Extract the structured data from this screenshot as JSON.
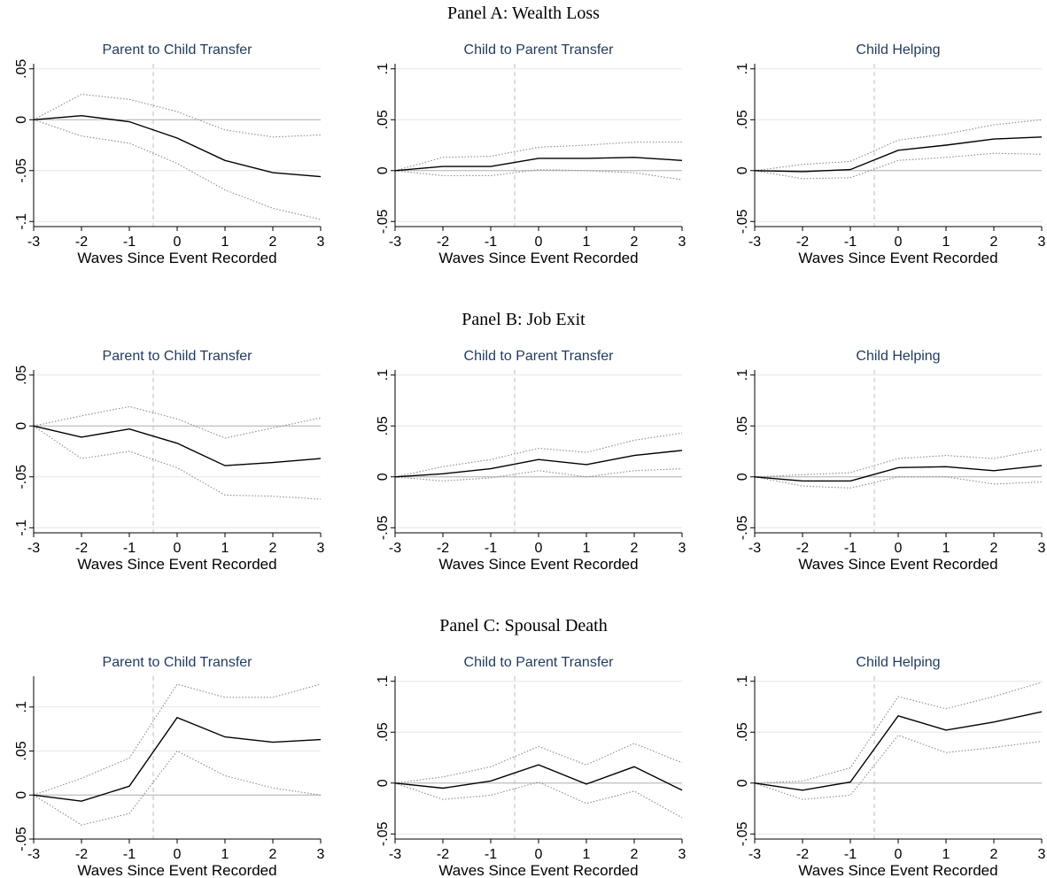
{
  "panels": [
    {
      "title": "Panel A: Wealth Loss"
    },
    {
      "title": "Panel B: Job Exit"
    },
    {
      "title": "Panel C: Spousal Death"
    }
  ],
  "style": {
    "estimate_color": "#000000",
    "ci_color": "#8c8c8c",
    "grid_color": "#e6e6e6",
    "zero_line_color": "#b3b3b3",
    "event_line_color": "#bdbdbd",
    "subtitle_color": "#1f3a5f"
  },
  "chart_data": [
    {
      "panel": "Panel A: Wealth Loss",
      "type": "line",
      "title": "Parent to Child Transfer",
      "xlabel": "Waves Since Event Recorded",
      "ylabel": "",
      "x": [
        -3,
        -2,
        -1,
        0,
        1,
        2,
        3
      ],
      "xticks": [
        "-3",
        "-2",
        "-1",
        "0",
        "1",
        "2",
        "3"
      ],
      "ylim": [
        -0.105,
        0.055
      ],
      "yticks": [
        -0.1,
        -0.05,
        0,
        0.05
      ],
      "ytick_labels": [
        "-.1",
        "-.05",
        "0",
        ".05"
      ],
      "estimate": [
        0,
        0.004,
        -0.002,
        -0.018,
        -0.04,
        -0.052,
        -0.056
      ],
      "ci_upper": [
        0,
        0.025,
        0.02,
        0.008,
        -0.01,
        -0.017,
        -0.015
      ],
      "ci_lower": [
        0,
        -0.016,
        -0.023,
        -0.043,
        -0.069,
        -0.087,
        -0.098
      ],
      "event_line_x": -0.5,
      "reference_line_y": 0
    },
    {
      "panel": "Panel A: Wealth Loss",
      "type": "line",
      "title": "Child to Parent Transfer",
      "xlabel": "Waves Since Event Recorded",
      "ylabel": "",
      "x": [
        -3,
        -2,
        -1,
        0,
        1,
        2,
        3
      ],
      "xticks": [
        "-3",
        "-2",
        "-1",
        "0",
        "1",
        "2",
        "3"
      ],
      "ylim": [
        -0.055,
        0.105
      ],
      "yticks": [
        -0.05,
        0,
        0.05,
        0.1
      ],
      "ytick_labels": [
        "-.05",
        "0",
        ".05",
        ".1"
      ],
      "estimate": [
        0,
        0.004,
        0.004,
        0.012,
        0.012,
        0.013,
        0.01
      ],
      "ci_upper": [
        0,
        0.013,
        0.014,
        0.023,
        0.025,
        0.028,
        0.028
      ],
      "ci_lower": [
        0,
        -0.005,
        -0.005,
        0.001,
        0.0,
        -0.002,
        -0.009
      ],
      "event_line_x": -0.5,
      "reference_line_y": 0
    },
    {
      "panel": "Panel A: Wealth Loss",
      "type": "line",
      "title": "Child Helping",
      "xlabel": "Waves Since Event Recorded",
      "ylabel": "",
      "x": [
        -3,
        -2,
        -1,
        0,
        1,
        2,
        3
      ],
      "xticks": [
        "-3",
        "-2",
        "-1",
        "0",
        "1",
        "2",
        "3"
      ],
      "ylim": [
        -0.055,
        0.105
      ],
      "yticks": [
        -0.05,
        0,
        0.05,
        0.1
      ],
      "ytick_labels": [
        "-.05",
        "0",
        ".05",
        ".1"
      ],
      "estimate": [
        0,
        -0.001,
        0.001,
        0.02,
        0.025,
        0.031,
        0.033
      ],
      "ci_upper": [
        0,
        0.006,
        0.009,
        0.03,
        0.036,
        0.045,
        0.05
      ],
      "ci_lower": [
        0,
        -0.008,
        -0.007,
        0.01,
        0.013,
        0.017,
        0.016
      ],
      "event_line_x": -0.5,
      "reference_line_y": 0
    },
    {
      "panel": "Panel B: Job Exit",
      "type": "line",
      "title": "Parent to Child Transfer",
      "xlabel": "Waves Since Event Recorded",
      "ylabel": "",
      "x": [
        -3,
        -2,
        -1,
        0,
        1,
        2,
        3
      ],
      "xticks": [
        "-3",
        "-2",
        "-1",
        "0",
        "1",
        "2",
        "3"
      ],
      "ylim": [
        -0.105,
        0.055
      ],
      "yticks": [
        -0.1,
        -0.05,
        0,
        0.05
      ],
      "ytick_labels": [
        "-.1",
        "-.05",
        "0",
        ".05"
      ],
      "estimate": [
        0,
        -0.011,
        -0.003,
        -0.017,
        -0.039,
        -0.036,
        -0.032
      ],
      "ci_upper": [
        0,
        0.01,
        0.019,
        0.007,
        -0.012,
        -0.002,
        0.008
      ],
      "ci_lower": [
        0,
        -0.032,
        -0.025,
        -0.041,
        -0.068,
        -0.069,
        -0.072
      ],
      "event_line_x": -0.5,
      "reference_line_y": 0
    },
    {
      "panel": "Panel B: Job Exit",
      "type": "line",
      "title": "Child to Parent Transfer",
      "xlabel": "Waves Since Event Recorded",
      "ylabel": "",
      "x": [
        -3,
        -2,
        -1,
        0,
        1,
        2,
        3
      ],
      "xticks": [
        "-3",
        "-2",
        "-1",
        "0",
        "1",
        "2",
        "3"
      ],
      "ylim": [
        -0.055,
        0.105
      ],
      "yticks": [
        -0.05,
        0,
        0.05,
        0.1
      ],
      "ytick_labels": [
        "-.05",
        "0",
        ".05",
        ".1"
      ],
      "estimate": [
        0,
        0.003,
        0.008,
        0.017,
        0.012,
        0.021,
        0.026
      ],
      "ci_upper": [
        0,
        0.01,
        0.017,
        0.028,
        0.024,
        0.036,
        0.043
      ],
      "ci_lower": [
        0,
        -0.004,
        -0.001,
        0.006,
        0.0,
        0.006,
        0.008
      ],
      "event_line_x": -0.5,
      "reference_line_y": 0
    },
    {
      "panel": "Panel B: Job Exit",
      "type": "line",
      "title": "Child Helping",
      "xlabel": "Waves Since Event Recorded",
      "ylabel": "",
      "x": [
        -3,
        -2,
        -1,
        0,
        1,
        2,
        3
      ],
      "xticks": [
        "-3",
        "-2",
        "-1",
        "0",
        "1",
        "2",
        "3"
      ],
      "ylim": [
        -0.055,
        0.105
      ],
      "yticks": [
        -0.05,
        0,
        0.05,
        0.1
      ],
      "ytick_labels": [
        "-.05",
        "0",
        ".05",
        ".1"
      ],
      "estimate": [
        0,
        -0.004,
        -0.004,
        0.009,
        0.01,
        0.006,
        0.011
      ],
      "ci_upper": [
        0,
        0.002,
        0.004,
        0.018,
        0.021,
        0.018,
        0.027
      ],
      "ci_lower": [
        0,
        -0.009,
        -0.011,
        0.0,
        0.0,
        -0.007,
        -0.005
      ],
      "event_line_x": -0.5,
      "reference_line_y": 0
    },
    {
      "panel": "Panel C: Spousal Death",
      "type": "line",
      "title": "Parent to Child Transfer",
      "xlabel": "Waves Since Event Recorded",
      "ylabel": "",
      "x": [
        -3,
        -2,
        -1,
        0,
        1,
        2,
        3
      ],
      "xticks": [
        "-3",
        "-2",
        "-1",
        "0",
        "1",
        "2",
        "3"
      ],
      "ylim": [
        -0.05,
        0.135
      ],
      "yticks": [
        -0.05,
        0,
        0.05,
        0.1
      ],
      "ytick_labels": [
        "-.05",
        "0",
        ".05",
        ".1"
      ],
      "estimate": [
        0,
        -0.007,
        0.01,
        0.088,
        0.066,
        0.06,
        0.063
      ],
      "ci_upper": [
        0,
        0.019,
        0.042,
        0.126,
        0.111,
        0.111,
        0.126
      ],
      "ci_lower": [
        0,
        -0.034,
        -0.021,
        0.05,
        0.022,
        0.008,
        0.0
      ],
      "event_line_x": -0.5,
      "reference_line_y": 0
    },
    {
      "panel": "Panel C: Spousal Death",
      "type": "line",
      "title": "Child to Parent Transfer",
      "xlabel": "Waves Since Event Recorded",
      "ylabel": "",
      "x": [
        -3,
        -2,
        -1,
        0,
        1,
        2,
        3
      ],
      "xticks": [
        "-3",
        "-2",
        "-1",
        "0",
        "1",
        "2",
        "3"
      ],
      "ylim": [
        -0.055,
        0.105
      ],
      "yticks": [
        -0.05,
        0,
        0.05,
        0.1
      ],
      "ytick_labels": [
        "-.05",
        "0",
        ".05",
        ".1"
      ],
      "estimate": [
        0,
        -0.005,
        0.002,
        0.018,
        -0.001,
        0.016,
        -0.007
      ],
      "ci_upper": [
        0,
        0.006,
        0.016,
        0.036,
        0.018,
        0.039,
        0.02
      ],
      "ci_lower": [
        0,
        -0.016,
        -0.012,
        0.001,
        -0.02,
        -0.008,
        -0.034
      ],
      "event_line_x": -0.5,
      "reference_line_y": 0
    },
    {
      "panel": "Panel C: Spousal Death",
      "type": "line",
      "title": "Child Helping",
      "xlabel": "Waves Since Event Recorded",
      "ylabel": "",
      "x": [
        -3,
        -2,
        -1,
        0,
        1,
        2,
        3
      ],
      "xticks": [
        "-3",
        "-2",
        "-1",
        "0",
        "1",
        "2",
        "3"
      ],
      "ylim": [
        -0.055,
        0.105
      ],
      "yticks": [
        -0.05,
        0,
        0.05,
        0.1
      ],
      "ytick_labels": [
        "-.05",
        "0",
        ".05",
        ".1"
      ],
      "estimate": [
        0,
        -0.007,
        0.001,
        0.066,
        0.052,
        0.06,
        0.07
      ],
      "ci_upper": [
        0,
        0.002,
        0.015,
        0.085,
        0.073,
        0.085,
        0.099
      ],
      "ci_lower": [
        0,
        -0.016,
        -0.012,
        0.047,
        0.03,
        0.035,
        0.041
      ],
      "event_line_x": -0.5,
      "reference_line_y": 0
    }
  ]
}
